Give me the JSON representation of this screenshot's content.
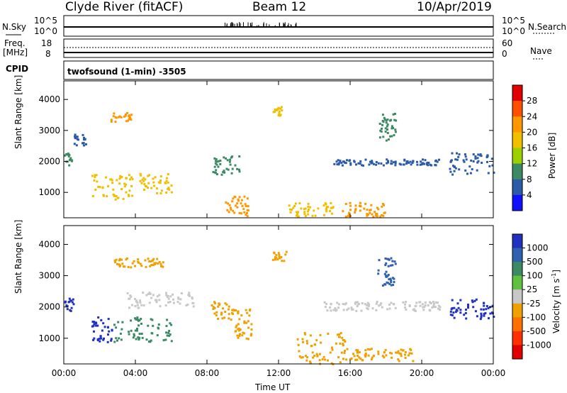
{
  "header": {
    "station": "Clyde River (fitACF)",
    "beam": "Beam 12",
    "date": "10/Apr/2019"
  },
  "top_panels": {
    "nsky_label": "N.Sky",
    "nsky_ticks": [
      "10^5",
      "10^0"
    ],
    "nsearch_label": "N.Search",
    "nsearch_ticks": [
      "10^5",
      "10^0"
    ],
    "freq_label_1": "Freq.",
    "freq_label_2": "[MHz]",
    "freq_ticks": [
      "18",
      "8"
    ],
    "nave_label": "Nave",
    "nave_ticks": [
      "60",
      "0"
    ],
    "cpid_label": "CPID",
    "cpid_text": "twofsound (1-min) -3505"
  },
  "chart_data": [
    {
      "type": "heatmap",
      "panel": "power",
      "ylabel": "Slant Range [km]",
      "yticks": [
        "4000",
        "3000",
        "2000",
        "1000"
      ],
      "ylim": [
        180,
        4600
      ],
      "colorbar_label": "Power [dB]",
      "colorbar_ticks": [
        "28",
        "24",
        "20",
        "16",
        "12",
        "8",
        "4"
      ],
      "colorbar_colors": [
        "#e00000",
        "#ff5000",
        "#ff9800",
        "#f0c000",
        "#9ad000",
        "#3c8a64",
        "#2a5aa8",
        "#1010ff"
      ],
      "regions": [
        {
          "t0": 0.0,
          "t1": 0.4,
          "r0": 1900,
          "r1": 2300,
          "level": 12
        },
        {
          "t0": 0.4,
          "t1": 1.2,
          "r0": 2500,
          "r1": 2900,
          "level": 8
        },
        {
          "t0": 1.5,
          "t1": 3.8,
          "r0": 800,
          "r1": 1600,
          "level": 16
        },
        {
          "t0": 2.6,
          "t1": 3.8,
          "r0": 3300,
          "r1": 3600,
          "level": 20
        },
        {
          "t0": 4.2,
          "t1": 6.0,
          "r0": 1000,
          "r1": 1650,
          "level": 16
        },
        {
          "t0": 8.2,
          "t1": 9.8,
          "r0": 1600,
          "r1": 2200,
          "level": 12
        },
        {
          "t0": 9.0,
          "t1": 10.4,
          "r0": 250,
          "r1": 900,
          "level": 20
        },
        {
          "t0": 11.6,
          "t1": 12.3,
          "r0": 3500,
          "r1": 3800,
          "level": 16
        },
        {
          "t0": 12.5,
          "t1": 15.0,
          "r0": 250,
          "r1": 700,
          "level": 16
        },
        {
          "t0": 15.5,
          "t1": 18.0,
          "r0": 250,
          "r1": 700,
          "level": 20
        },
        {
          "t0": 15.0,
          "t1": 21.0,
          "r0": 1900,
          "r1": 2100,
          "level": 8
        },
        {
          "t0": 17.5,
          "t1": 18.5,
          "r0": 2700,
          "r1": 3600,
          "level": 12
        },
        {
          "t0": 21.5,
          "t1": 24.0,
          "r0": 1600,
          "r1": 2300,
          "level": 8
        }
      ]
    },
    {
      "type": "heatmap",
      "panel": "velocity",
      "ylabel": "Slant Range [km]",
      "yticks": [
        "4000",
        "3000",
        "2000",
        "1000"
      ],
      "ylim": [
        180,
        4600
      ],
      "xlabel": "Time UT",
      "xticks": [
        "00:00",
        "04:00",
        "08:00",
        "12:00",
        "16:00",
        "20:00",
        "00:00"
      ],
      "colorbar_label": "Velocity [m s-1]",
      "colorbar_ticks": [
        "1000",
        "500",
        "100",
        "25",
        "-25",
        "-100",
        "-500",
        "-1000"
      ],
      "colorbar_colors": [
        "#2030c0",
        "#3060b0",
        "#3c8a64",
        "#60c040",
        "#c8c8c8",
        "#f0a000",
        "#ff7000",
        "#ff3000",
        "#e00000"
      ],
      "regions": [
        {
          "t0": 0.0,
          "t1": 0.5,
          "r0": 1900,
          "r1": 2300,
          "level": 1000
        },
        {
          "t0": 1.5,
          "t1": 2.7,
          "r0": 900,
          "r1": 1700,
          "level": 1000
        },
        {
          "t0": 2.7,
          "t1": 6.0,
          "r0": 900,
          "r1": 1700,
          "level": 100
        },
        {
          "t0": 3.5,
          "t1": 7.2,
          "r0": 2000,
          "r1": 2500,
          "level": 25
        },
        {
          "t0": 2.7,
          "t1": 5.5,
          "r0": 3300,
          "r1": 3600,
          "level": -100
        },
        {
          "t0": 8.2,
          "t1": 9.5,
          "r0": 1600,
          "r1": 2200,
          "level": -100
        },
        {
          "t0": 9.5,
          "t1": 10.5,
          "r0": 1000,
          "r1": 2000,
          "level": -100
        },
        {
          "t0": 11.6,
          "t1": 12.4,
          "r0": 3500,
          "r1": 3800,
          "level": -100
        },
        {
          "t0": 13.0,
          "t1": 16.0,
          "r0": 200,
          "r1": 1200,
          "level": -100
        },
        {
          "t0": 16.0,
          "t1": 19.5,
          "r0": 300,
          "r1": 700,
          "level": -100
        },
        {
          "t0": 14.5,
          "t1": 21.0,
          "r0": 1900,
          "r1": 2200,
          "level": 25
        },
        {
          "t0": 17.5,
          "t1": 18.5,
          "r0": 2700,
          "r1": 3600,
          "level": 500
        },
        {
          "t0": 21.5,
          "t1": 24.0,
          "r0": 1600,
          "r1": 2300,
          "level": 1000
        }
      ]
    }
  ]
}
